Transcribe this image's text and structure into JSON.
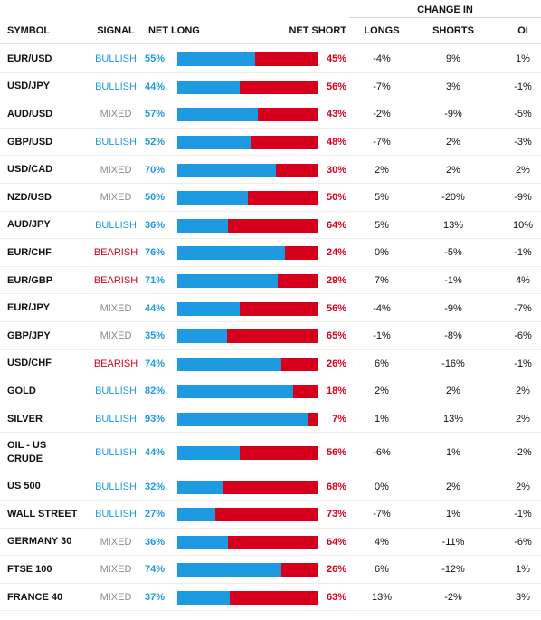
{
  "header": {
    "change_in": "CHANGE IN",
    "symbol": "SYMBOL",
    "signal": "SIGNAL",
    "net_long": "NET LONG",
    "net_short": "NET SHORT",
    "longs": "LONGS",
    "shorts": "SHORTS",
    "oi": "OI"
  },
  "colors": {
    "bullish": "#1e9ae0",
    "mixed": "#8a8a8a",
    "bearish": "#d6001c",
    "long_bar": "#1e9ae0",
    "short_bar": "#d6001c"
  },
  "rows": [
    {
      "symbol": "EUR/USD",
      "signal": "BULLISH",
      "long": "55%",
      "long_value": 55,
      "short": "45%",
      "longs": "-4%",
      "shorts": "9%",
      "oi": "1%"
    },
    {
      "symbol": "USD/JPY",
      "signal": "BULLISH",
      "long": "44%",
      "long_value": 44,
      "short": "56%",
      "longs": "-7%",
      "shorts": "3%",
      "oi": "-1%"
    },
    {
      "symbol": "AUD/USD",
      "signal": "MIXED",
      "long": "57%",
      "long_value": 57,
      "short": "43%",
      "longs": "-2%",
      "shorts": "-9%",
      "oi": "-5%"
    },
    {
      "symbol": "GBP/USD",
      "signal": "BULLISH",
      "long": "52%",
      "long_value": 52,
      "short": "48%",
      "longs": "-7%",
      "shorts": "2%",
      "oi": "-3%"
    },
    {
      "symbol": "USD/CAD",
      "signal": "MIXED",
      "long": "70%",
      "long_value": 70,
      "short": "30%",
      "longs": "2%",
      "shorts": "2%",
      "oi": "2%"
    },
    {
      "symbol": "NZD/USD",
      "signal": "MIXED",
      "long": "50%",
      "long_value": 50,
      "short": "50%",
      "longs": "5%",
      "shorts": "-20%",
      "oi": "-9%"
    },
    {
      "symbol": "AUD/JPY",
      "signal": "BULLISH",
      "long": "36%",
      "long_value": 36,
      "short": "64%",
      "longs": "5%",
      "shorts": "13%",
      "oi": "10%"
    },
    {
      "symbol": "EUR/CHF",
      "signal": "BEARISH",
      "long": "76%",
      "long_value": 76,
      "short": "24%",
      "longs": "0%",
      "shorts": "-5%",
      "oi": "-1%"
    },
    {
      "symbol": "EUR/GBP",
      "signal": "BEARISH",
      "long": "71%",
      "long_value": 71,
      "short": "29%",
      "longs": "7%",
      "shorts": "-1%",
      "oi": "4%"
    },
    {
      "symbol": "EUR/JPY",
      "signal": "MIXED",
      "long": "44%",
      "long_value": 44,
      "short": "56%",
      "longs": "-4%",
      "shorts": "-9%",
      "oi": "-7%"
    },
    {
      "symbol": "GBP/JPY",
      "signal": "MIXED",
      "long": "35%",
      "long_value": 35,
      "short": "65%",
      "longs": "-1%",
      "shorts": "-8%",
      "oi": "-6%"
    },
    {
      "symbol": "USD/CHF",
      "signal": "BEARISH",
      "long": "74%",
      "long_value": 74,
      "short": "26%",
      "longs": "6%",
      "shorts": "-16%",
      "oi": "-1%"
    },
    {
      "symbol": "GOLD",
      "signal": "BULLISH",
      "long": "82%",
      "long_value": 82,
      "short": "18%",
      "longs": "2%",
      "shorts": "2%",
      "oi": "2%"
    },
    {
      "symbol": "SILVER",
      "signal": "BULLISH",
      "long": "93%",
      "long_value": 93,
      "short": "7%",
      "longs": "1%",
      "shorts": "13%",
      "oi": "2%"
    },
    {
      "symbol": "OIL - US CRUDE",
      "signal": "BULLISH",
      "long": "44%",
      "long_value": 44,
      "short": "56%",
      "longs": "-6%",
      "shorts": "1%",
      "oi": "-2%"
    },
    {
      "symbol": "US 500",
      "signal": "BULLISH",
      "long": "32%",
      "long_value": 32,
      "short": "68%",
      "longs": "0%",
      "shorts": "2%",
      "oi": "2%"
    },
    {
      "symbol": "WALL STREET",
      "signal": "BULLISH",
      "long": "27%",
      "long_value": 27,
      "short": "73%",
      "longs": "-7%",
      "shorts": "1%",
      "oi": "-1%"
    },
    {
      "symbol": "GERMANY 30",
      "signal": "MIXED",
      "long": "36%",
      "long_value": 36,
      "short": "64%",
      "longs": "4%",
      "shorts": "-11%",
      "oi": "-6%"
    },
    {
      "symbol": "FTSE 100",
      "signal": "MIXED",
      "long": "74%",
      "long_value": 74,
      "short": "26%",
      "longs": "6%",
      "shorts": "-12%",
      "oi": "1%"
    },
    {
      "symbol": "FRANCE 40",
      "signal": "MIXED",
      "long": "37%",
      "long_value": 37,
      "short": "63%",
      "longs": "13%",
      "shorts": "-2%",
      "oi": "3%"
    }
  ]
}
